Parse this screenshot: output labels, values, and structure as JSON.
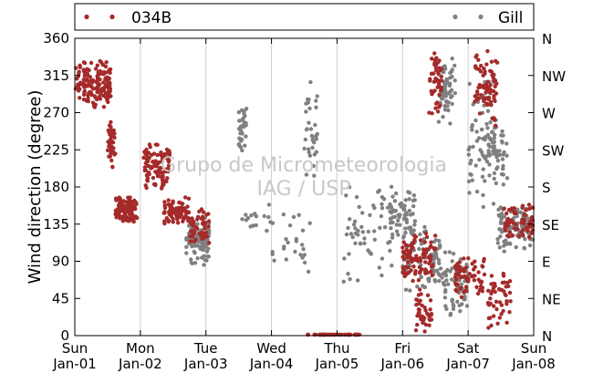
{
  "chart_data": {
    "type": "scatter",
    "ylabel": "Wind direction (degree)",
    "ylim": [
      0,
      360
    ],
    "yticks": [
      0,
      45,
      90,
      135,
      180,
      225,
      270,
      315,
      360
    ],
    "right_ticks": [
      {
        "value": 0,
        "label": "N"
      },
      {
        "value": 45,
        "label": "NE"
      },
      {
        "value": 90,
        "label": "E"
      },
      {
        "value": 135,
        "label": "SE"
      },
      {
        "value": 180,
        "label": "S"
      },
      {
        "value": 225,
        "label": "SW"
      },
      {
        "value": 270,
        "label": "W"
      },
      {
        "value": 315,
        "label": "NW"
      },
      {
        "value": 360,
        "label": "N"
      }
    ],
    "x_range_days": [
      0,
      7
    ],
    "x_ticks": [
      {
        "day": 0,
        "weekday": "Sun",
        "date": "Jan-01"
      },
      {
        "day": 1,
        "weekday": "Mon",
        "date": "Jan-02"
      },
      {
        "day": 2,
        "weekday": "Tue",
        "date": "Jan-03"
      },
      {
        "day": 3,
        "weekday": "Wed",
        "date": "Jan-04"
      },
      {
        "day": 4,
        "weekday": "Thu",
        "date": "Jan-05"
      },
      {
        "day": 5,
        "weekday": "Fri",
        "date": "Jan-06"
      },
      {
        "day": 6,
        "weekday": "Sat",
        "date": "Jan-07"
      },
      {
        "day": 7,
        "weekday": "Sun",
        "date": "Jan-08"
      }
    ],
    "grid": "vertical",
    "legend_placement": "top",
    "watermark": [
      "Grupo de Micrometeorologia",
      "IAG / USP"
    ],
    "series": [
      {
        "name": "034B",
        "color": "#a52a2a",
        "clusters": [
          {
            "x": [
              0.0,
              0.55
            ],
            "y": [
              270,
              335
            ],
            "n": 150
          },
          {
            "x": [
              0.5,
              0.62
            ],
            "y": [
              200,
              270
            ],
            "n": 40
          },
          {
            "x": [
              0.62,
              0.95
            ],
            "y": [
              135,
              170
            ],
            "n": 110
          },
          {
            "x": [
              1.05,
              1.45
            ],
            "y": [
              175,
              235
            ],
            "n": 110
          },
          {
            "x": [
              1.35,
              1.75
            ],
            "y": [
              130,
              170
            ],
            "n": 80
          },
          {
            "x": [
              1.75,
              2.05
            ],
            "y": [
              110,
              155
            ],
            "n": 50
          },
          {
            "x": [
              3.55,
              4.35
            ],
            "y": [
              0,
              1
            ],
            "n": 40
          },
          {
            "x": [
              5.0,
              5.5
            ],
            "y": [
              60,
              130
            ],
            "n": 90
          },
          {
            "x": [
              5.2,
              5.45
            ],
            "y": [
              0,
              60
            ],
            "n": 40
          },
          {
            "x": [
              5.4,
              5.6
            ],
            "y": [
              260,
              355
            ],
            "n": 50
          },
          {
            "x": [
              5.8,
              6.25
            ],
            "y": [
              40,
              100
            ],
            "n": 70
          },
          {
            "x": [
              6.1,
              6.45
            ],
            "y": [
              250,
              350
            ],
            "n": 70
          },
          {
            "x": [
              6.3,
              6.65
            ],
            "y": [
              0,
              90
            ],
            "n": 50
          },
          {
            "x": [
              6.55,
              7.0
            ],
            "y": [
              110,
              165
            ],
            "n": 70
          }
        ]
      },
      {
        "name": "Gill",
        "color": "#808080",
        "clusters": [
          {
            "x": [
              1.7,
              2.05
            ],
            "y": [
              80,
              150
            ],
            "n": 110
          },
          {
            "x": [
              2.5,
              2.62
            ],
            "y": [
              220,
              290
            ],
            "n": 30
          },
          {
            "x": [
              2.55,
              3.0
            ],
            "y": [
              120,
              160
            ],
            "n": 15
          },
          {
            "x": [
              3.0,
              3.6
            ],
            "y": [
              70,
              160
            ],
            "n": 25
          },
          {
            "x": [
              3.5,
              3.7
            ],
            "y": [
              170,
              310
            ],
            "n": 35
          },
          {
            "x": [
              4.1,
              4.9
            ],
            "y": [
              60,
              200
            ],
            "n": 60
          },
          {
            "x": [
              4.8,
              5.2
            ],
            "y": [
              110,
              180
            ],
            "n": 60
          },
          {
            "x": [
              5.0,
              5.6
            ],
            "y": [
              50,
              140
            ],
            "n": 100
          },
          {
            "x": [
              5.55,
              5.8
            ],
            "y": [
              250,
              340
            ],
            "n": 60
          },
          {
            "x": [
              5.6,
              6.0
            ],
            "y": [
              20,
              110
            ],
            "n": 70
          },
          {
            "x": [
              6.0,
              6.45
            ],
            "y": [
              150,
              330
            ],
            "n": 80
          },
          {
            "x": [
              6.45,
              7.0
            ],
            "y": [
              100,
              160
            ],
            "n": 100
          },
          {
            "x": [
              6.3,
              6.6
            ],
            "y": [
              180,
              260
            ],
            "n": 40
          }
        ]
      }
    ]
  }
}
